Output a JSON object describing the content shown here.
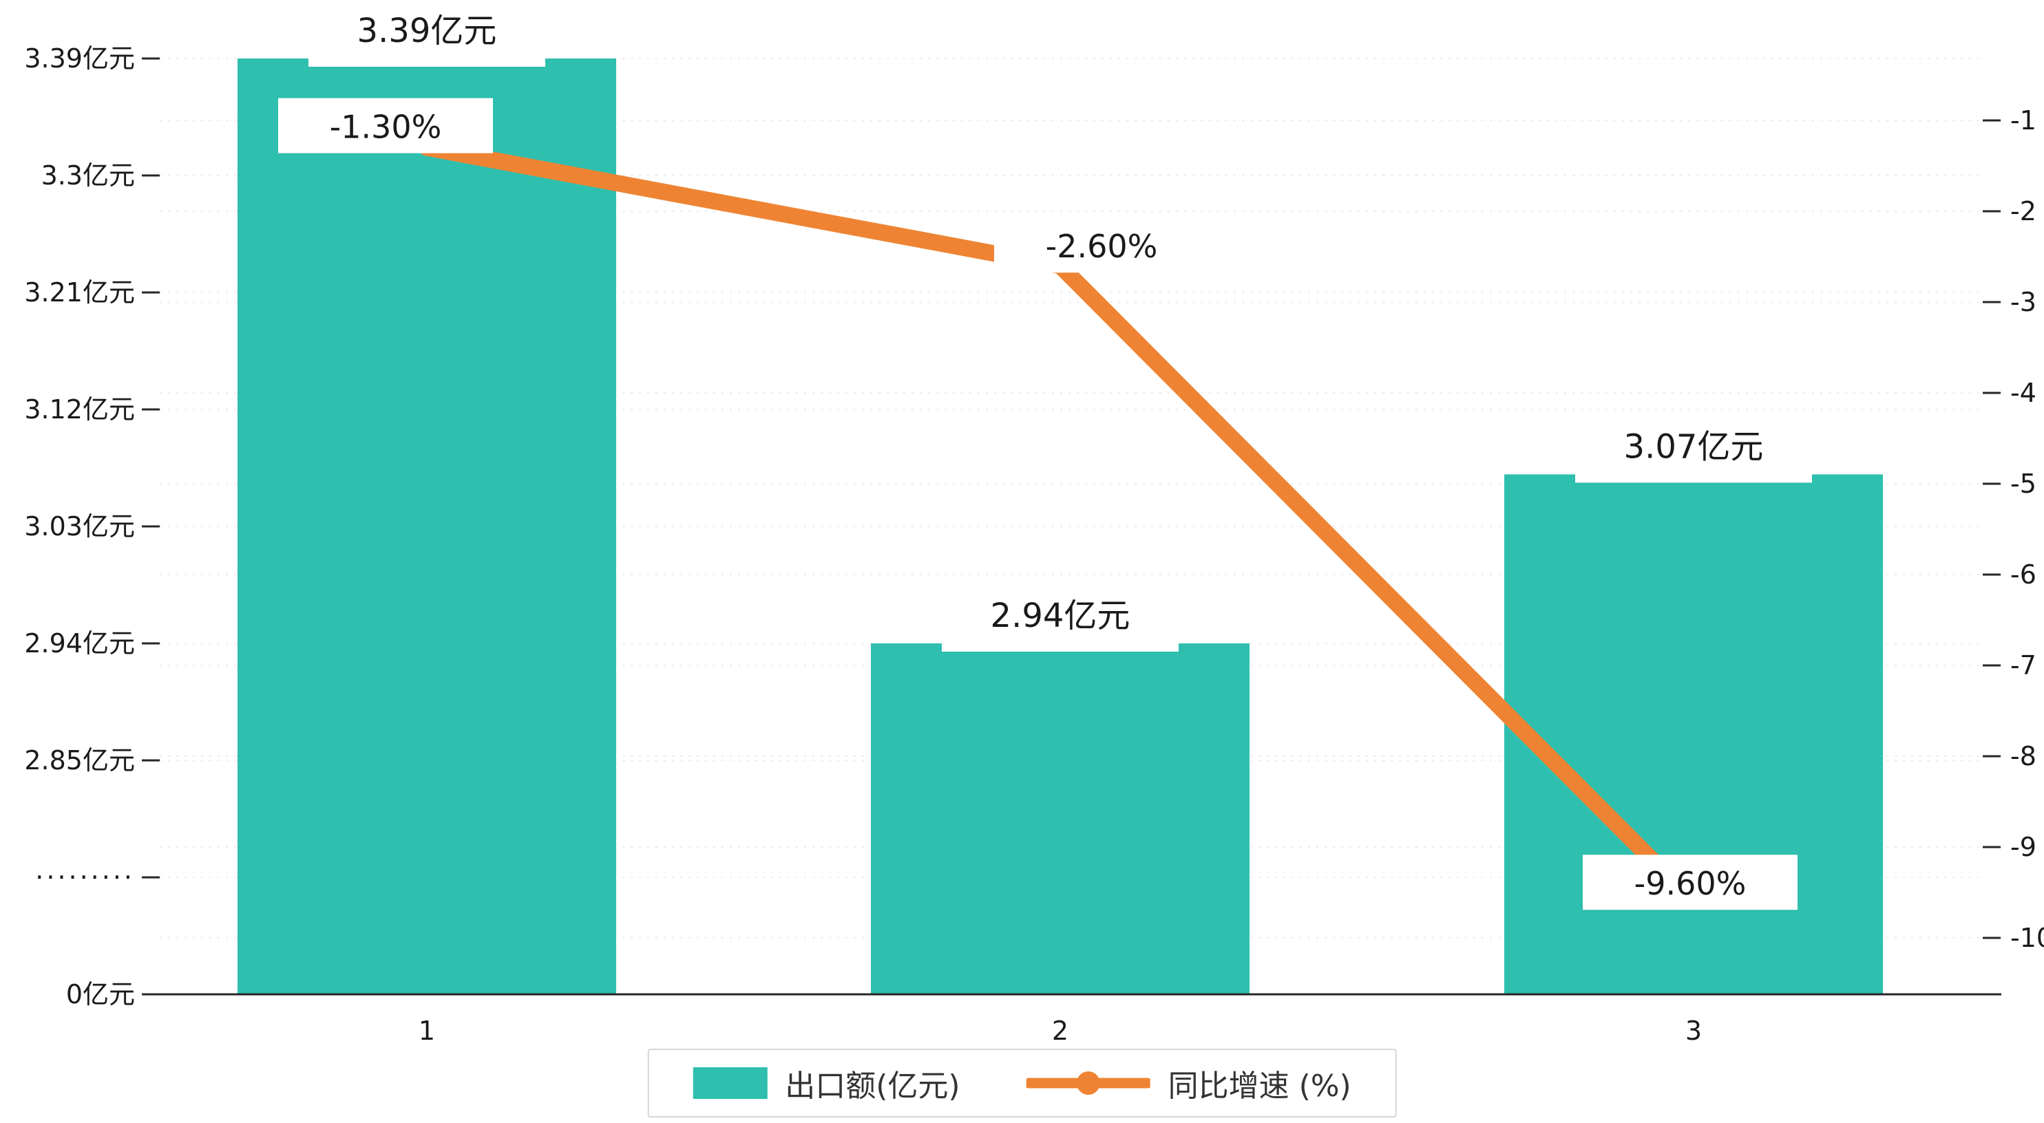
{
  "chart_data": {
    "type": "bar",
    "subtype": "bar+line combo, dual y-axis",
    "title": "",
    "xlabel": "",
    "ylabel": "",
    "categories": [
      "1",
      "2",
      "3"
    ],
    "series": [
      {
        "name": "出口额(亿元)",
        "type": "bar",
        "axis": "left",
        "values": [
          3.39,
          2.94,
          3.07
        ],
        "labels": [
          "3.39亿元",
          "2.94亿元",
          "3.07亿元"
        ],
        "color": "#2ebfae"
      },
      {
        "name": "同比增速 (%)",
        "type": "line",
        "axis": "right",
        "values": [
          -1.3,
          -2.6,
          -9.6
        ],
        "labels": [
          "-1.30%",
          "-2.60%",
          "-9.60%"
        ],
        "color": "#ee8433"
      }
    ],
    "left_axis": {
      "tick_labels": [
        "3.39亿元",
        "3.3亿元",
        "3.21亿元",
        "3.12亿元",
        "3.03亿元",
        "2.94亿元",
        "2.85亿元",
        "·········",
        "0亿元"
      ],
      "tick_values": [
        3.39,
        3.3,
        3.21,
        3.12,
        3.03,
        2.94,
        2.85,
        null,
        0
      ],
      "broken_axis": true
    },
    "right_axis": {
      "tick_labels": [
        "-1",
        "-2",
        "-3",
        "-4",
        "-5",
        "-6",
        "-7",
        "-8",
        "-9",
        "-10"
      ],
      "tick_values": [
        -1,
        -2,
        -3,
        -4,
        -5,
        -6,
        -7,
        -8,
        -9,
        -10
      ],
      "min": -10,
      "max": -1
    },
    "legend": {
      "position": "bottom",
      "items": [
        "出口额(亿元)",
        "同比增速 (%)"
      ]
    },
    "grid": true
  },
  "colors": {
    "bar": "#2ebfae",
    "line": "#ee8433",
    "grid": "#f2eaea",
    "axis": "#262626",
    "text": "#1a1a1a",
    "label_bg": "#ffffff",
    "legend_border": "#d6d6d6"
  }
}
